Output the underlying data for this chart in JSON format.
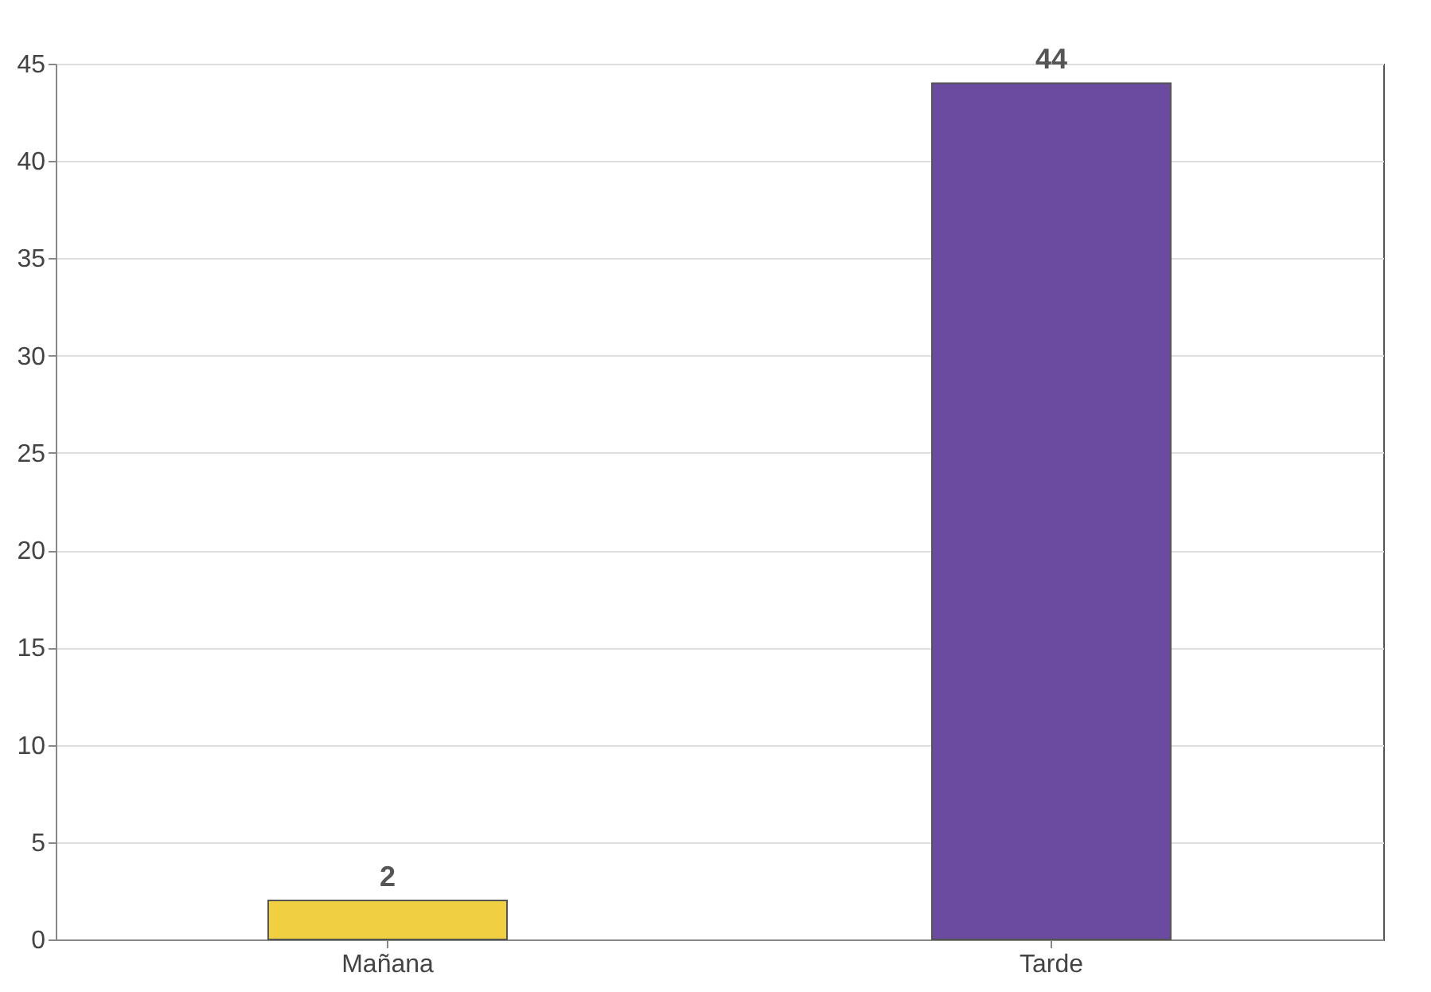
{
  "chart_data": {
    "type": "bar",
    "categories": [
      "Mañana",
      "Tarde"
    ],
    "values": [
      2,
      44
    ],
    "colors": [
      "#f0d040",
      "#6a4ba0"
    ],
    "ylim": [
      0,
      45
    ],
    "yticks": [
      0,
      5,
      10,
      15,
      20,
      25,
      30,
      35,
      40,
      45
    ],
    "grid": "y",
    "data_labels": true
  }
}
